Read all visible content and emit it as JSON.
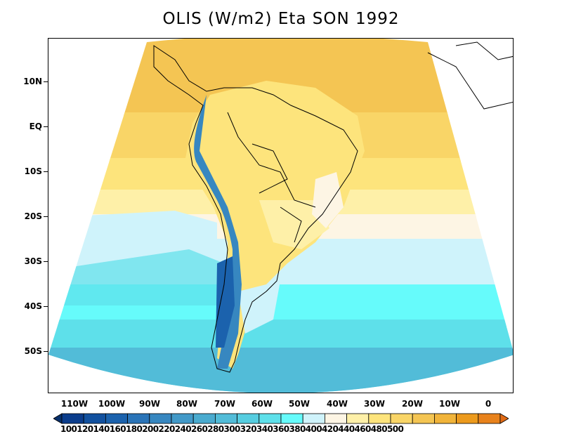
{
  "title": "OLIS (W/m2) Eta SON 1992",
  "lat_labels": [
    "10N",
    "EQ",
    "10S",
    "20S",
    "30S",
    "40S",
    "50S"
  ],
  "lon_labels": [
    "110W",
    "100W",
    "90W",
    "80W",
    "70W",
    "60W",
    "50W",
    "40W",
    "30W",
    "20W",
    "10W",
    "0"
  ],
  "colorbar": {
    "levels": [
      "100",
      "120",
      "140",
      "160",
      "180",
      "200",
      "220",
      "240",
      "260",
      "280",
      "300",
      "320",
      "340",
      "360",
      "380",
      "400",
      "420",
      "440",
      "460",
      "480",
      "500"
    ],
    "colors": [
      "#08306b",
      "#0b3d8c",
      "#12519f",
      "#1b62ad",
      "#2a74b8",
      "#3787c0",
      "#4299c8",
      "#4aabcf",
      "#52bcd8",
      "#56cde0",
      "#5ee0ea",
      "#66fbfb",
      "#cff3fb",
      "#fdf5e4",
      "#fef0a8",
      "#fde47c",
      "#f9d567",
      "#f4c553",
      "#f1b43a",
      "#ec9a1d",
      "#e8821c",
      "#e06a14"
    ],
    "label_text": "1001201401601802002202402602803003203403603804004204404604805​00"
  },
  "colors": {
    "land_outline": "#000000",
    "ocean_tropical": "#f4c553",
    "ocean_subtropical": "#fde47c",
    "ocean_midlat": "#cff3fb",
    "ocean_south": "#5ee0ea",
    "andes": "#3787c0"
  }
}
